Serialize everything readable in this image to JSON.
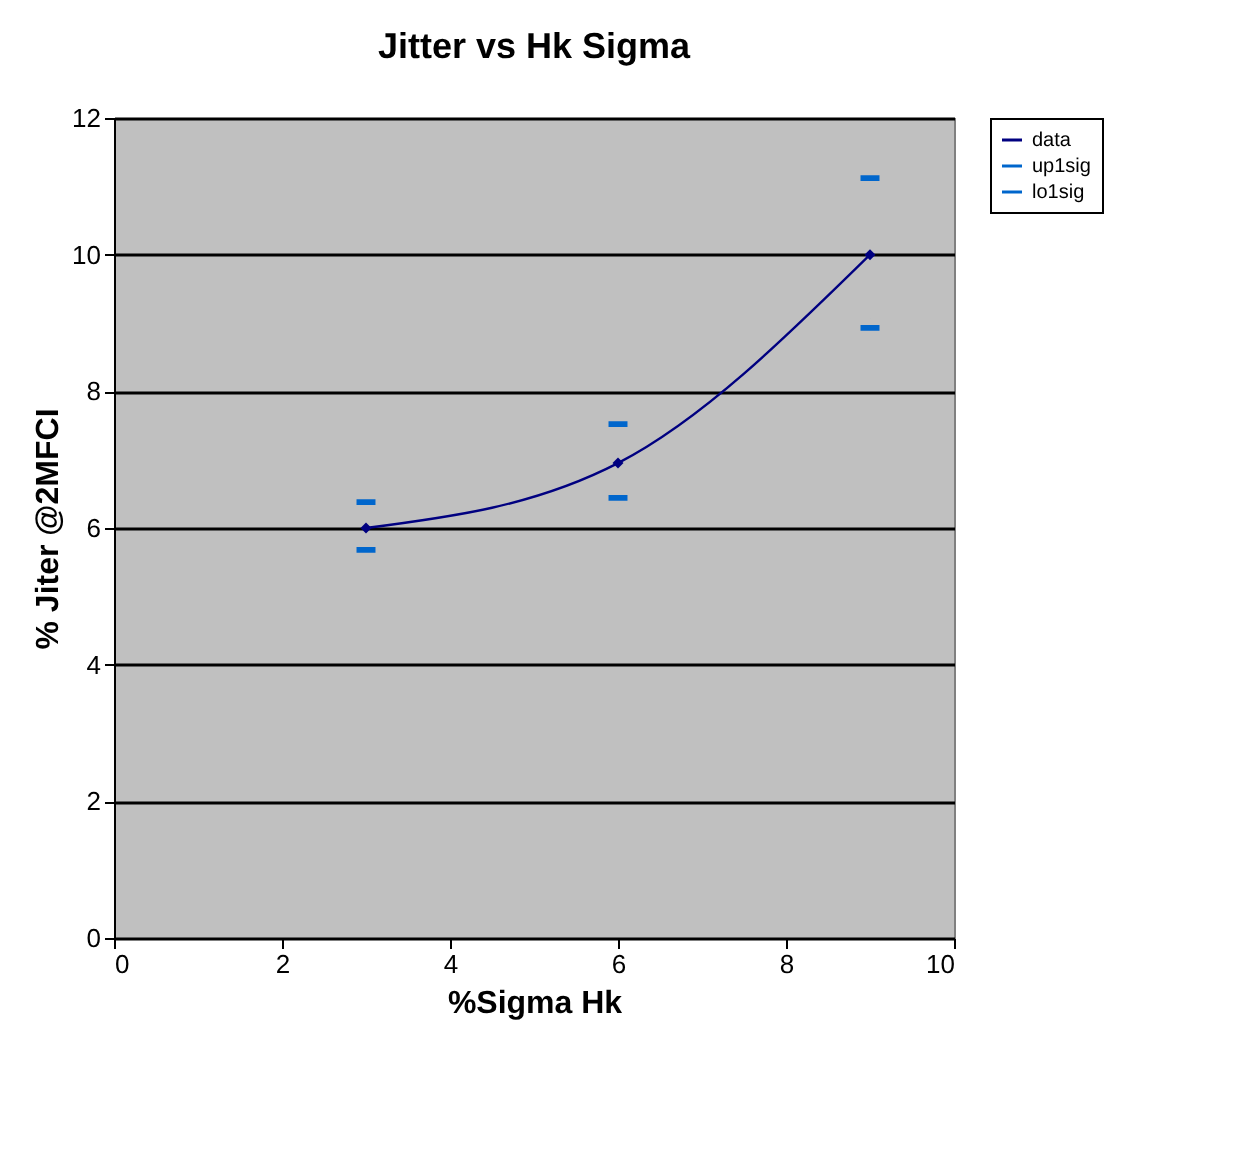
{
  "chart_data": {
    "type": "line",
    "title": "Jitter vs Hk Sigma",
    "xlabel": "%Sigma Hk",
    "ylabel": "% Jiter @2MFCI",
    "x": [
      3,
      6,
      9
    ],
    "series": [
      {
        "name": "data",
        "color": "#000080",
        "values": [
          6.0,
          6.95,
          10.0
        ],
        "marker": "diamond"
      },
      {
        "name": "up1sig",
        "color": "#0066cc",
        "values": [
          6.38,
          7.52,
          11.12
        ],
        "type": "scatter"
      },
      {
        "name": "lo1sig",
        "color": "#0066cc",
        "values": [
          5.68,
          6.44,
          8.93
        ],
        "type": "scatter"
      }
    ],
    "xlim": [
      0,
      10
    ],
    "xticks": [
      0,
      2,
      4,
      6,
      8,
      10
    ],
    "ylim": [
      0,
      12
    ],
    "yticks": [
      0,
      2,
      4,
      6,
      8,
      10,
      12
    ],
    "grid": "y",
    "legend": "right"
  }
}
